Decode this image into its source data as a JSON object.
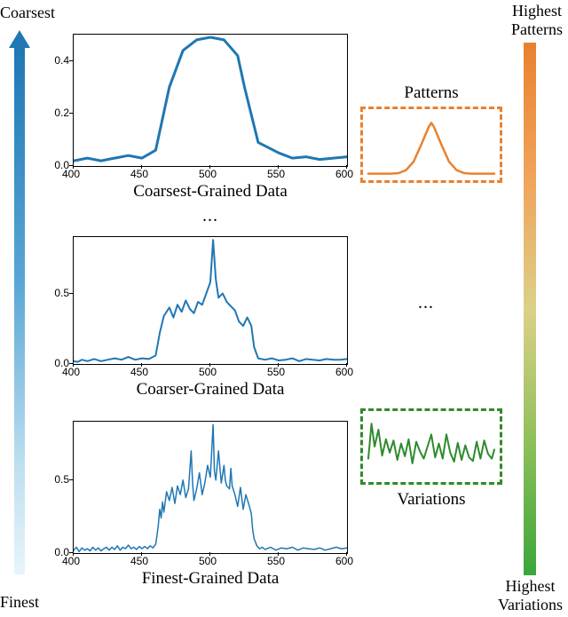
{
  "font_family": "Times New Roman",
  "left_axis": {
    "top_label": "Coarsest",
    "bottom_label": "Finest",
    "gradient_top": "#1f77b4",
    "gradient_bottom": "#e8f4fb",
    "arrow_color": "#1f77b4"
  },
  "right_axis": {
    "top_label": "Highest\nPatterns",
    "bottom_label": "Highest\nVariations",
    "gradient_top": "#e8812f",
    "gradient_bottom": "#3aa63a"
  },
  "ellipsis": "...",
  "charts": {
    "coarsest": {
      "type": "line",
      "label": "Coarsest-Grained Data",
      "xlim": [
        400,
        600
      ],
      "ylim": [
        0.0,
        0.5
      ],
      "xticks": [
        400,
        450,
        500,
        550,
        600
      ],
      "yticks": [
        0.0,
        0.2,
        0.4
      ],
      "line_color": "#1f77b4",
      "line_width": 3,
      "tick_fontsize": 12,
      "background_color": "#ffffff",
      "border_color": "#000000",
      "data": [
        [
          400,
          0.02
        ],
        [
          410,
          0.03
        ],
        [
          420,
          0.02
        ],
        [
          430,
          0.03
        ],
        [
          440,
          0.04
        ],
        [
          450,
          0.03
        ],
        [
          460,
          0.06
        ],
        [
          470,
          0.3
        ],
        [
          480,
          0.44
        ],
        [
          490,
          0.48
        ],
        [
          500,
          0.49
        ],
        [
          510,
          0.48
        ],
        [
          520,
          0.42
        ],
        [
          525,
          0.3
        ],
        [
          535,
          0.09
        ],
        [
          550,
          0.05
        ],
        [
          560,
          0.03
        ],
        [
          570,
          0.035
        ],
        [
          580,
          0.025
        ],
        [
          590,
          0.03
        ],
        [
          600,
          0.035
        ]
      ]
    },
    "coarser": {
      "type": "line",
      "label": "Coarser-Grained Data",
      "xlim": [
        400,
        600
      ],
      "ylim": [
        0.0,
        0.9
      ],
      "xticks": [
        400,
        450,
        500,
        550,
        600
      ],
      "yticks": [
        0.0,
        0.5
      ],
      "line_color": "#1f77b4",
      "line_width": 2,
      "tick_fontsize": 12,
      "background_color": "#ffffff",
      "border_color": "#000000",
      "data": [
        [
          400,
          0.02
        ],
        [
          403,
          0.015
        ],
        [
          406,
          0.03
        ],
        [
          410,
          0.02
        ],
        [
          415,
          0.035
        ],
        [
          420,
          0.02
        ],
        [
          425,
          0.03
        ],
        [
          430,
          0.04
        ],
        [
          435,
          0.03
        ],
        [
          440,
          0.05
        ],
        [
          445,
          0.03
        ],
        [
          450,
          0.04
        ],
        [
          455,
          0.035
        ],
        [
          460,
          0.06
        ],
        [
          463,
          0.22
        ],
        [
          466,
          0.34
        ],
        [
          470,
          0.4
        ],
        [
          473,
          0.33
        ],
        [
          476,
          0.42
        ],
        [
          479,
          0.37
        ],
        [
          482,
          0.45
        ],
        [
          485,
          0.39
        ],
        [
          488,
          0.36
        ],
        [
          491,
          0.44
        ],
        [
          494,
          0.42
        ],
        [
          497,
          0.5
        ],
        [
          500,
          0.58
        ],
        [
          502,
          0.88
        ],
        [
          504,
          0.6
        ],
        [
          506,
          0.47
        ],
        [
          509,
          0.5
        ],
        [
          512,
          0.44
        ],
        [
          515,
          0.41
        ],
        [
          518,
          0.38
        ],
        [
          521,
          0.3
        ],
        [
          524,
          0.27
        ],
        [
          527,
          0.33
        ],
        [
          530,
          0.27
        ],
        [
          532,
          0.12
        ],
        [
          535,
          0.04
        ],
        [
          540,
          0.03
        ],
        [
          545,
          0.04
        ],
        [
          550,
          0.025
        ],
        [
          555,
          0.03
        ],
        [
          560,
          0.04
        ],
        [
          565,
          0.02
        ],
        [
          570,
          0.035
        ],
        [
          575,
          0.03
        ],
        [
          580,
          0.025
        ],
        [
          585,
          0.035
        ],
        [
          590,
          0.03
        ],
        [
          595,
          0.03
        ],
        [
          600,
          0.035
        ]
      ]
    },
    "finest": {
      "type": "line",
      "label": "Finest-Grained Data",
      "xlim": [
        400,
        600
      ],
      "ylim": [
        0.0,
        0.9
      ],
      "xticks": [
        400,
        450,
        500,
        550,
        600
      ],
      "yticks": [
        0.0,
        0.5
      ],
      "line_color": "#1f77b4",
      "line_width": 1.5,
      "tick_fontsize": 12,
      "background_color": "#ffffff",
      "border_color": "#000000",
      "data": [
        [
          400,
          0.02
        ],
        [
          402,
          0.04
        ],
        [
          404,
          0.01
        ],
        [
          406,
          0.035
        ],
        [
          408,
          0.02
        ],
        [
          410,
          0.03
        ],
        [
          412,
          0.015
        ],
        [
          414,
          0.04
        ],
        [
          416,
          0.02
        ],
        [
          418,
          0.035
        ],
        [
          420,
          0.015
        ],
        [
          422,
          0.03
        ],
        [
          424,
          0.04
        ],
        [
          426,
          0.02
        ],
        [
          428,
          0.04
        ],
        [
          430,
          0.025
        ],
        [
          432,
          0.05
        ],
        [
          434,
          0.02
        ],
        [
          436,
          0.04
        ],
        [
          438,
          0.03
        ],
        [
          440,
          0.055
        ],
        [
          442,
          0.03
        ],
        [
          444,
          0.04
        ],
        [
          446,
          0.025
        ],
        [
          448,
          0.045
        ],
        [
          450,
          0.03
        ],
        [
          452,
          0.045
        ],
        [
          454,
          0.03
        ],
        [
          456,
          0.05
        ],
        [
          458,
          0.035
        ],
        [
          460,
          0.06
        ],
        [
          461,
          0.12
        ],
        [
          462,
          0.2
        ],
        [
          463,
          0.3
        ],
        [
          464,
          0.24
        ],
        [
          465,
          0.35
        ],
        [
          466,
          0.28
        ],
        [
          468,
          0.42
        ],
        [
          470,
          0.36
        ],
        [
          472,
          0.45
        ],
        [
          474,
          0.34
        ],
        [
          476,
          0.46
        ],
        [
          478,
          0.4
        ],
        [
          480,
          0.5
        ],
        [
          482,
          0.38
        ],
        [
          484,
          0.44
        ],
        [
          486,
          0.7
        ],
        [
          487,
          0.48
        ],
        [
          488,
          0.36
        ],
        [
          490,
          0.44
        ],
        [
          492,
          0.55
        ],
        [
          494,
          0.4
        ],
        [
          496,
          0.48
        ],
        [
          498,
          0.6
        ],
        [
          500,
          0.52
        ],
        [
          502,
          0.88
        ],
        [
          503,
          0.56
        ],
        [
          504,
          0.5
        ],
        [
          506,
          0.7
        ],
        [
          508,
          0.48
        ],
        [
          510,
          0.6
        ],
        [
          511,
          0.5
        ],
        [
          512,
          0.46
        ],
        [
          514,
          0.44
        ],
        [
          515,
          0.58
        ],
        [
          516,
          0.46
        ],
        [
          518,
          0.4
        ],
        [
          520,
          0.32
        ],
        [
          522,
          0.45
        ],
        [
          524,
          0.3
        ],
        [
          526,
          0.4
        ],
        [
          528,
          0.34
        ],
        [
          530,
          0.27
        ],
        [
          531,
          0.16
        ],
        [
          532,
          0.1
        ],
        [
          534,
          0.05
        ],
        [
          536,
          0.03
        ],
        [
          538,
          0.04
        ],
        [
          540,
          0.025
        ],
        [
          544,
          0.04
        ],
        [
          548,
          0.02
        ],
        [
          552,
          0.035
        ],
        [
          556,
          0.03
        ],
        [
          560,
          0.04
        ],
        [
          564,
          0.02
        ],
        [
          568,
          0.035
        ],
        [
          572,
          0.03
        ],
        [
          576,
          0.025
        ],
        [
          580,
          0.035
        ],
        [
          584,
          0.02
        ],
        [
          588,
          0.03
        ],
        [
          592,
          0.04
        ],
        [
          596,
          0.03
        ],
        [
          600,
          0.035
        ]
      ]
    }
  },
  "insets": {
    "patterns": {
      "label": "Patterns",
      "border_color": "#e8812f",
      "line_color": "#e8812f",
      "line_width": 2.5,
      "background_color": "#ffffff",
      "type": "smooth-bump",
      "data": [
        [
          0,
          0.02
        ],
        [
          0.06,
          0.02
        ],
        [
          0.12,
          0.02
        ],
        [
          0.18,
          0.02
        ],
        [
          0.24,
          0.03
        ],
        [
          0.3,
          0.08
        ],
        [
          0.36,
          0.22
        ],
        [
          0.42,
          0.5
        ],
        [
          0.48,
          0.8
        ],
        [
          0.5,
          0.86
        ],
        [
          0.52,
          0.8
        ],
        [
          0.58,
          0.5
        ],
        [
          0.64,
          0.22
        ],
        [
          0.7,
          0.08
        ],
        [
          0.76,
          0.03
        ],
        [
          0.82,
          0.02
        ],
        [
          0.88,
          0.02
        ],
        [
          0.94,
          0.02
        ],
        [
          1.0,
          0.02
        ]
      ]
    },
    "variations": {
      "label": "Variations",
      "border_color": "#2e8b2e",
      "line_color": "#2e8b2e",
      "line_width": 2,
      "background_color": "#ffffff",
      "type": "noise",
      "data": [
        [
          0,
          0.3
        ],
        [
          0.025,
          0.88
        ],
        [
          0.05,
          0.5
        ],
        [
          0.08,
          0.78
        ],
        [
          0.11,
          0.35
        ],
        [
          0.14,
          0.62
        ],
        [
          0.17,
          0.4
        ],
        [
          0.2,
          0.6
        ],
        [
          0.23,
          0.28
        ],
        [
          0.26,
          0.55
        ],
        [
          0.29,
          0.34
        ],
        [
          0.32,
          0.62
        ],
        [
          0.35,
          0.22
        ],
        [
          0.38,
          0.58
        ],
        [
          0.41,
          0.42
        ],
        [
          0.44,
          0.3
        ],
        [
          0.47,
          0.5
        ],
        [
          0.5,
          0.7
        ],
        [
          0.53,
          0.32
        ],
        [
          0.56,
          0.55
        ],
        [
          0.59,
          0.3
        ],
        [
          0.62,
          0.7
        ],
        [
          0.65,
          0.4
        ],
        [
          0.68,
          0.25
        ],
        [
          0.71,
          0.56
        ],
        [
          0.74,
          0.28
        ],
        [
          0.77,
          0.52
        ],
        [
          0.8,
          0.32
        ],
        [
          0.83,
          0.26
        ],
        [
          0.86,
          0.58
        ],
        [
          0.89,
          0.3
        ],
        [
          0.92,
          0.6
        ],
        [
          0.95,
          0.38
        ],
        [
          0.98,
          0.3
        ],
        [
          1.0,
          0.45
        ]
      ]
    }
  }
}
